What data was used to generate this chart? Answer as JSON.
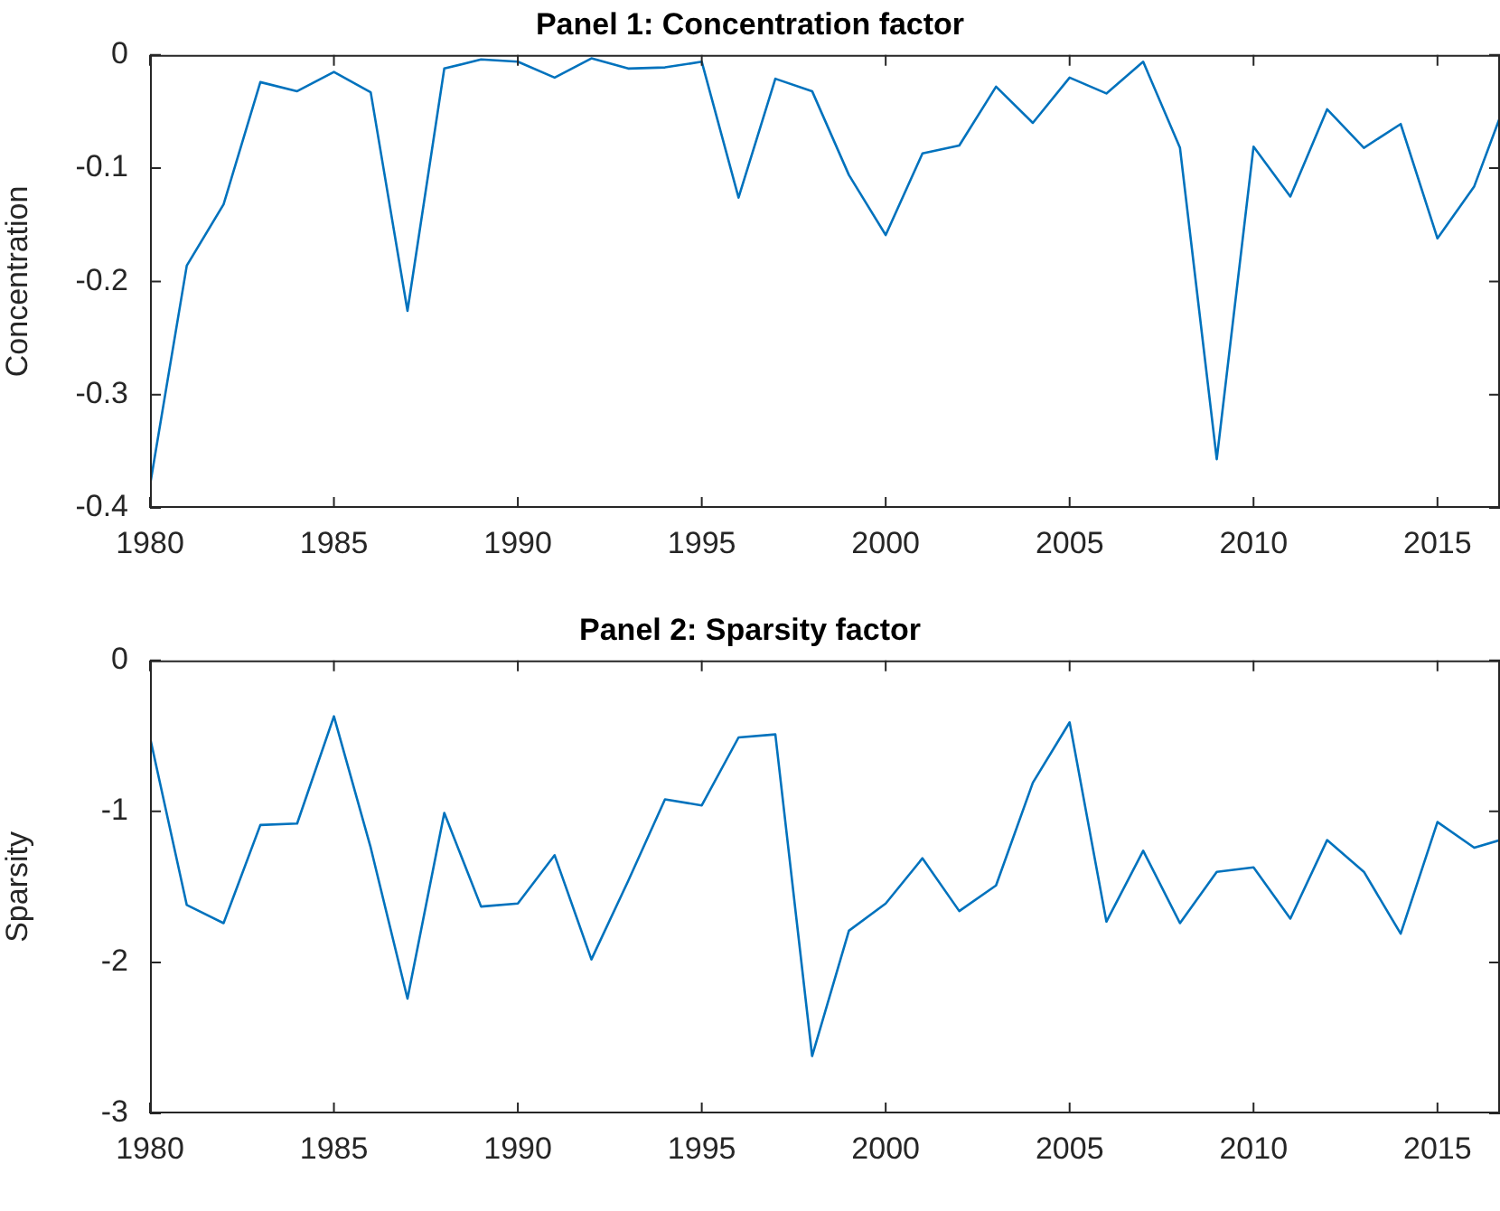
{
  "chart_data": [
    {
      "type": "line",
      "title": "Panel 1: Concentration factor",
      "ylabel": "Concentration",
      "color": "#0072bd",
      "x": [
        1980,
        1981,
        1982,
        1983,
        1984,
        1985,
        1986,
        1987,
        1988,
        1989,
        1990,
        1991,
        1992,
        1993,
        1994,
        1995,
        1996,
        1997,
        1998,
        1999,
        2000,
        2001,
        2002,
        2003,
        2004,
        2005,
        2006,
        2007,
        2008,
        2009,
        2010,
        2011,
        2012,
        2013,
        2014,
        2015,
        2016,
        2016.7
      ],
      "values": [
        -0.38,
        -0.186,
        -0.132,
        -0.024,
        -0.032,
        -0.015,
        -0.033,
        -0.226,
        -0.012,
        -0.004,
        -0.006,
        -0.02,
        -0.003,
        -0.012,
        -0.011,
        -0.006,
        -0.126,
        -0.021,
        -0.032,
        -0.106,
        -0.159,
        -0.087,
        -0.08,
        -0.028,
        -0.06,
        -0.02,
        -0.034,
        -0.006,
        -0.082,
        -0.357,
        -0.081,
        -0.125,
        -0.048,
        -0.082,
        -0.061,
        -0.162,
        -0.116,
        -0.055
      ],
      "xlim": [
        1980,
        2016.7
      ],
      "xticks": [
        1980,
        1985,
        1990,
        1995,
        2000,
        2005,
        2010,
        2015
      ],
      "ylim": [
        -0.4,
        0
      ],
      "yticks": [
        -0.4,
        -0.3,
        -0.2,
        -0.1,
        0
      ]
    },
    {
      "type": "line",
      "title": "Panel 2: Sparsity factor",
      "ylabel": "Sparsity",
      "color": "#0072bd",
      "x": [
        1980,
        1981,
        1982,
        1983,
        1984,
        1985,
        1986,
        1987,
        1988,
        1989,
        1990,
        1991,
        1992,
        1993,
        1994,
        1995,
        1996,
        1997,
        1998,
        1999,
        2000,
        2001,
        2002,
        2003,
        2004,
        2005,
        2006,
        2007,
        2008,
        2009,
        2010,
        2011,
        2012,
        2013,
        2014,
        2015,
        2016,
        2016.7
      ],
      "values": [
        -0.51,
        -1.62,
        -1.74,
        -1.09,
        -1.08,
        -0.37,
        -1.24,
        -2.24,
        -1.01,
        -1.63,
        -1.61,
        -1.29,
        -1.98,
        -1.46,
        -0.92,
        -0.96,
        -0.51,
        -0.49,
        -2.62,
        -1.79,
        -1.61,
        -1.31,
        -1.66,
        -1.49,
        -0.81,
        -0.41,
        -1.73,
        -1.26,
        -1.74,
        -1.4,
        -1.37,
        -1.71,
        -1.19,
        -1.4,
        -1.81,
        -1.07,
        -1.24,
        -1.19
      ],
      "xlim": [
        1980,
        2016.7
      ],
      "xticks": [
        1980,
        1985,
        1990,
        1995,
        2000,
        2005,
        2010,
        2015
      ],
      "ylim": [
        -3,
        0
      ],
      "yticks": [
        -3,
        -2,
        -1,
        0
      ]
    }
  ]
}
